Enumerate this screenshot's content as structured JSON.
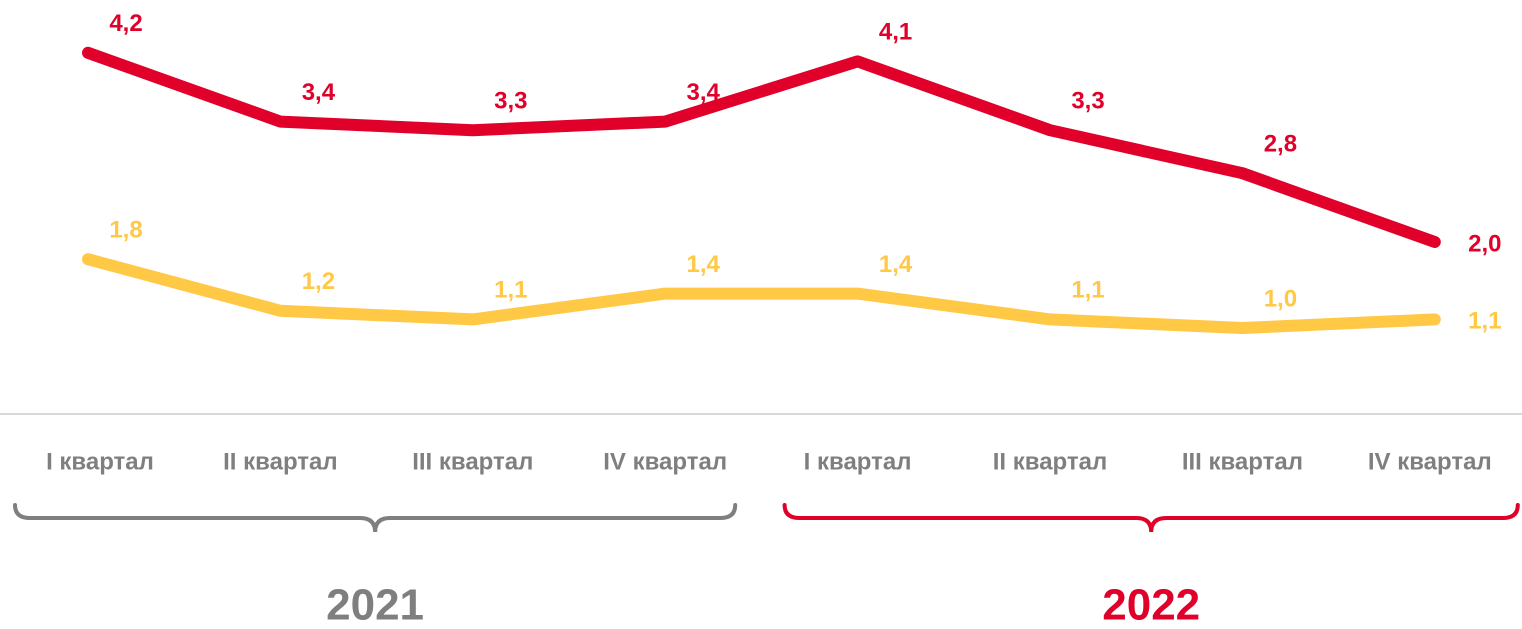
{
  "chart_data": {
    "type": "line",
    "categories": [
      "I квартал",
      "II квартал",
      "III квартал",
      "IV квартал",
      "I квартал",
      "II квартал",
      "III квартал",
      "IV квартал"
    ],
    "series": [
      {
        "color": "#e0002a",
        "values": [
          4.2,
          3.4,
          3.3,
          3.4,
          4.1,
          3.3,
          2.8,
          2.0
        ],
        "value_labels": [
          "4,2",
          "3,4",
          "3,3",
          "3,4",
          "4,1",
          "3,3",
          "2,8",
          "2,0"
        ]
      },
      {
        "color": "#ffc845",
        "values": [
          1.8,
          1.2,
          1.1,
          1.4,
          1.4,
          1.1,
          1.0,
          1.1
        ],
        "value_labels": [
          "1,8",
          "1,2",
          "1,1",
          "1,4",
          "1,4",
          "1,1",
          "1,0",
          "1,1"
        ]
      }
    ],
    "groups": [
      {
        "label": "2021",
        "color": "#7f7f7f"
      },
      {
        "label": "2022",
        "color": "#e0002a"
      }
    ]
  }
}
